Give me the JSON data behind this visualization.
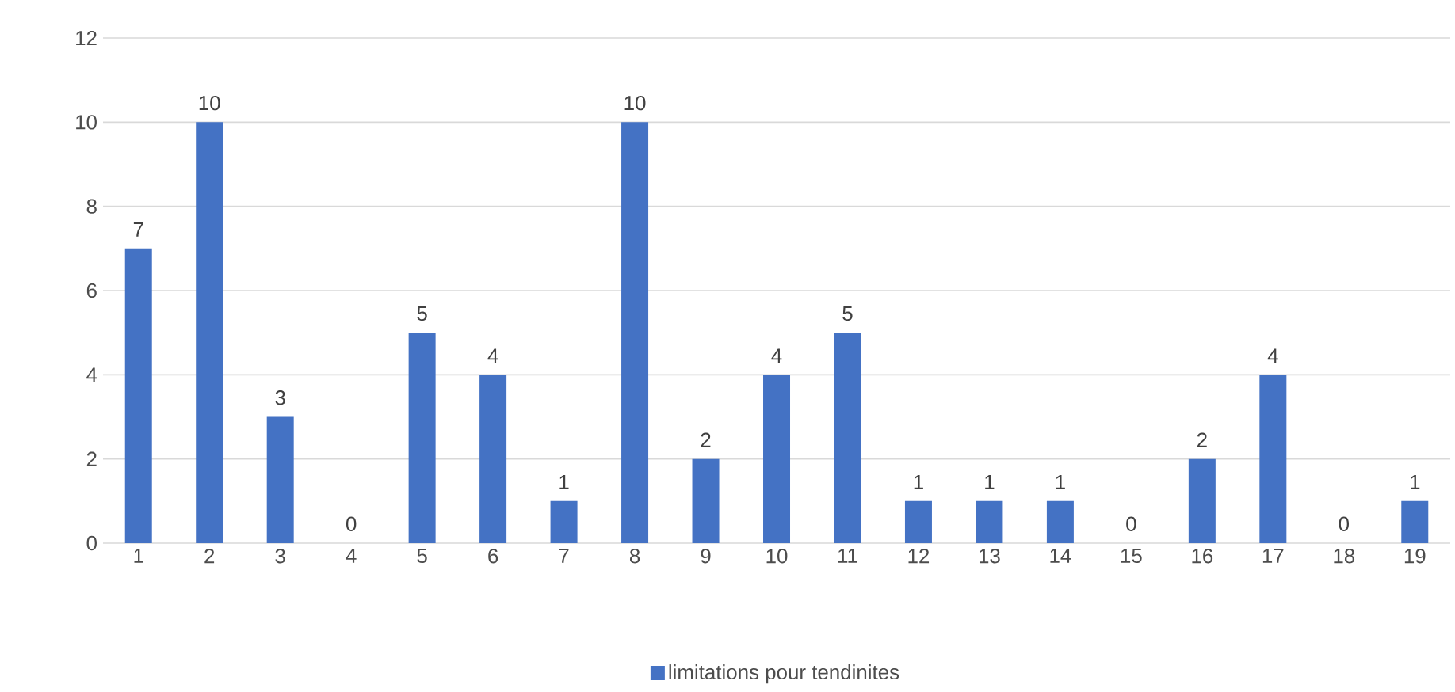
{
  "chart_data": {
    "type": "bar",
    "categories": [
      "1",
      "2",
      "3",
      "4",
      "5",
      "6",
      "7",
      "8",
      "9",
      "10",
      "11",
      "12",
      "13",
      "14",
      "15",
      "16",
      "17",
      "18",
      "19"
    ],
    "series": [
      {
        "name": "limitations pour tendinites",
        "color": "#4472c4",
        "values": [
          7,
          10,
          3,
          0,
          5,
          4,
          1,
          10,
          2,
          4,
          5,
          1,
          1,
          1,
          0,
          2,
          4,
          0,
          1
        ]
      }
    ],
    "ylim": [
      0,
      12
    ],
    "yticks": [
      0,
      2,
      4,
      6,
      8,
      10,
      12
    ],
    "grid": "y",
    "legend": "bottom",
    "data_labels": true
  }
}
